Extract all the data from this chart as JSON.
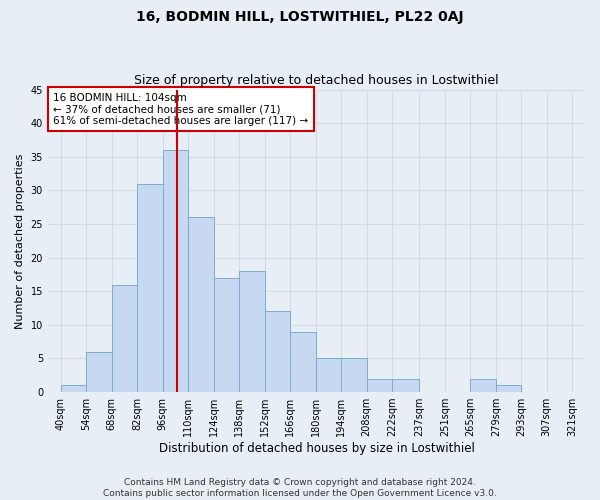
{
  "title": "16, BODMIN HILL, LOSTWITHIEL, PL22 0AJ",
  "subtitle": "Size of property relative to detached houses in Lostwithiel",
  "xlabel": "Distribution of detached houses by size in Lostwithiel",
  "ylabel": "Number of detached properties",
  "bar_values": [
    1,
    6,
    16,
    31,
    36,
    26,
    17,
    18,
    12,
    9,
    5,
    5,
    2,
    2,
    0,
    0,
    2,
    1,
    0,
    0
  ],
  "bin_edges": [
    40,
    54,
    68,
    82,
    96,
    110,
    124,
    138,
    152,
    166,
    180,
    194,
    208,
    222,
    237,
    251,
    265,
    279,
    293,
    307,
    321
  ],
  "bin_labels": [
    "40sqm",
    "54sqm",
    "68sqm",
    "82sqm",
    "96sqm",
    "110sqm",
    "124sqm",
    "138sqm",
    "152sqm",
    "166sqm",
    "180sqm",
    "194sqm",
    "208sqm",
    "222sqm",
    "237sqm",
    "251sqm",
    "265sqm",
    "279sqm",
    "293sqm",
    "307sqm",
    "321sqm"
  ],
  "bar_color": "#c6d9f0",
  "bar_edge_color": "#7aadce",
  "grid_color": "#d0dce8",
  "background_color": "#e8eef5",
  "property_label": "16 BODMIN HILL: 104sqm",
  "annotation_line1": "← 37% of detached houses are smaller (71)",
  "annotation_line2": "61% of semi-detached houses are larger (117) →",
  "annotation_box_color": "#ffffff",
  "annotation_box_edge_color": "#cc0000",
  "vline_color": "#cc0000",
  "vline_x": 104,
  "ylim": [
    0,
    45
  ],
  "yticks": [
    0,
    5,
    10,
    15,
    20,
    25,
    30,
    35,
    40,
    45
  ],
  "footer_line1": "Contains HM Land Registry data © Crown copyright and database right 2024.",
  "footer_line2": "Contains public sector information licensed under the Open Government Licence v3.0.",
  "title_fontsize": 10,
  "subtitle_fontsize": 9,
  "xlabel_fontsize": 8.5,
  "ylabel_fontsize": 8,
  "tick_fontsize": 7,
  "footer_fontsize": 6.5,
  "annotation_fontsize": 7.5
}
